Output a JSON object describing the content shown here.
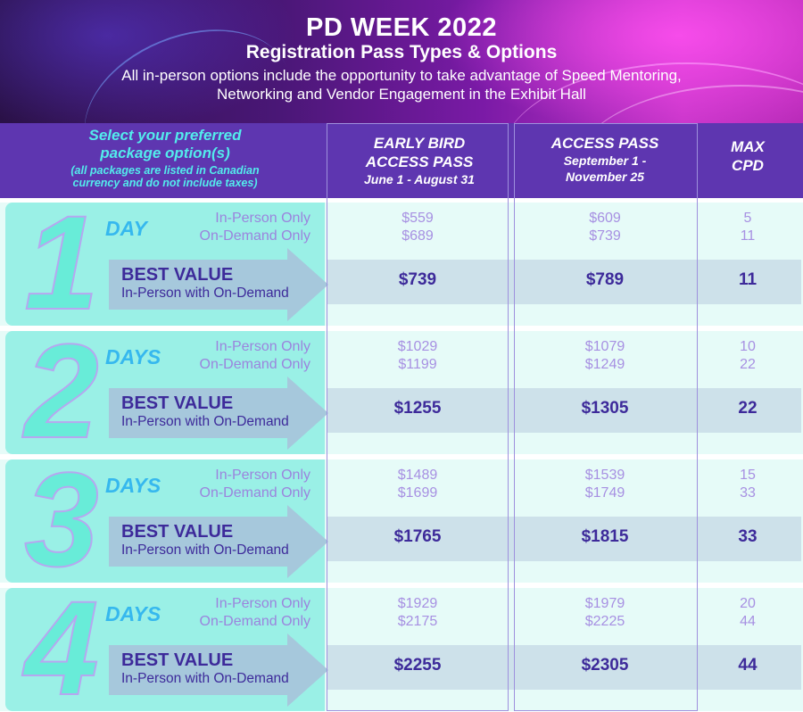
{
  "banner": {
    "title": "PD WEEK 2022",
    "subtitle": "Registration Pass Types & Options",
    "description_line1": "All in-person options include the opportunity to take advantage of Speed Mentoring,",
    "description_line2": "Networking and Vendor Engagement in the Exhibit Hall"
  },
  "header": {
    "select_line1": "Select your preferred",
    "select_line2": "package option(s)",
    "note_line1": "(all packages are listed in Canadian",
    "note_line2": "currency and do not include taxes)",
    "early_bird_line1": "EARLY BIRD",
    "early_bird_line2": "ACCESS PASS",
    "early_bird_dates": "June 1 - August 31",
    "access_line1": "ACCESS PASS",
    "access_dates_line1": "September 1 -",
    "access_dates_line2": "November 25",
    "max_line1": "MAX",
    "max_line2": "CPD"
  },
  "colors": {
    "header_band": "#5e36b0",
    "cyan_heading": "#53ecec",
    "left_panel": "#9af0e6",
    "row_background": "#e6fbf8",
    "best_value_row": "#cde1ea",
    "price_light": "#a790e2",
    "price_dark": "#3d2a9a"
  },
  "packages": [
    {
      "number": "1",
      "unit": "DAY",
      "opt1": "In-Person Only",
      "opt2": "On-Demand Only",
      "early_opt1": "$559",
      "early_opt2": "$689",
      "access_opt1": "$609",
      "access_opt2": "$739",
      "cpd_opt1": "5",
      "cpd_opt2": "11",
      "best_title": "BEST VALUE",
      "best_sub": "In-Person with On-Demand",
      "early_best": "$739",
      "access_best": "$789",
      "cpd_best": "11"
    },
    {
      "number": "2",
      "unit": "DAYS",
      "opt1": "In-Person Only",
      "opt2": "On-Demand Only",
      "early_opt1": "$1029",
      "early_opt2": "$1199",
      "access_opt1": "$1079",
      "access_opt2": "$1249",
      "cpd_opt1": "10",
      "cpd_opt2": "22",
      "best_title": "BEST VALUE",
      "best_sub": "In-Person with On-Demand",
      "early_best": "$1255",
      "access_best": "$1305",
      "cpd_best": "22"
    },
    {
      "number": "3",
      "unit": "DAYS",
      "opt1": "In-Person Only",
      "opt2": "On-Demand Only",
      "early_opt1": "$1489",
      "early_opt2": "$1699",
      "access_opt1": "$1539",
      "access_opt2": "$1749",
      "cpd_opt1": "15",
      "cpd_opt2": "33",
      "best_title": "BEST VALUE",
      "best_sub": "In-Person with On-Demand",
      "early_best": "$1765",
      "access_best": "$1815",
      "cpd_best": "33"
    },
    {
      "number": "4",
      "unit": "DAYS",
      "opt1": "In-Person Only",
      "opt2": "On-Demand Only",
      "early_opt1": "$1929",
      "early_opt2": "$2175",
      "access_opt1": "$1979",
      "access_opt2": "$2225",
      "cpd_opt1": "20",
      "cpd_opt2": "44",
      "best_title": "BEST VALUE",
      "best_sub": "In-Person with On-Demand",
      "early_best": "$2255",
      "access_best": "$2305",
      "cpd_best": "44"
    }
  ]
}
